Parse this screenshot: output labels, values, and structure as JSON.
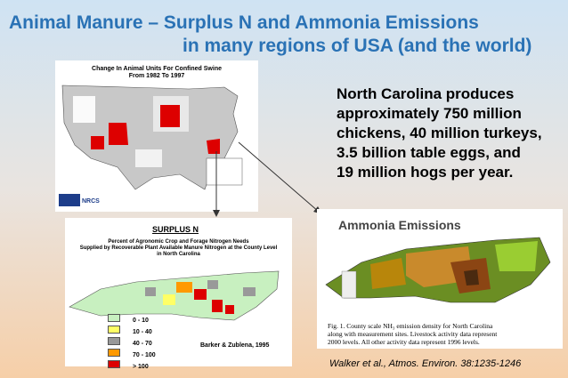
{
  "header": {
    "title_lines": [
      "Animal Manure – Surplus N and Ammonia Emissions",
      "in many regions of USA (and the world)"
    ]
  },
  "body": {
    "lines": [
      "North Carolina produces",
      "approximately 750 million",
      "chickens, 40 million turkeys,",
      "3.5 billion table eggs, and",
      "19 million hogs per year."
    ]
  },
  "us_map": {
    "title_lines": [
      "Change In Animal Units For Confined Swine",
      "From 1982 To 1997"
    ],
    "logo": "NRCS"
  },
  "surplus_panel": {
    "title": "SURPLUS N",
    "subtitle_lines": [
      "Percent of Agronomic Crop and Forage Nitrogen Needs",
      "Supplied  by  Recoverable Plant Available Manure Nitrogen at the County  Level",
      "in North Carolina"
    ],
    "legend": [
      "0 - 10",
      "10 - 40",
      "40 - 70",
      "70 - 100",
      "> 100"
    ],
    "source": "Barker & Zublena, 1995"
  },
  "ammonia_panel": {
    "title": "Ammonia Emissions",
    "caption_lines": [
      "Fig. 1.  County scale NH₃ emission density for North Carolina",
      "along with measurement sites. Livestock activity data represent",
      "2000 levels. All other activity data represent 1996 levels."
    ]
  },
  "citation": "Walker et al., Atmos. Environ. 38:1235-1246"
}
